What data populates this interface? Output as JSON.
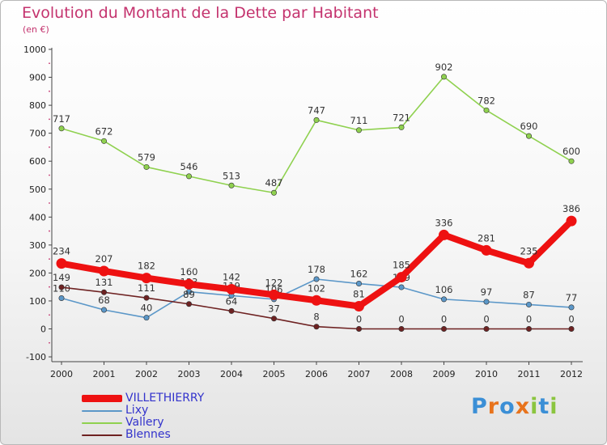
{
  "title": "Evolution du Montant de la Dette par Habitant",
  "unit": "(en €)",
  "logo": "Proxiti",
  "chart_data": {
    "type": "line",
    "x": [
      "2000",
      "2001",
      "2002",
      "2003",
      "2004",
      "2005",
      "2006",
      "2007",
      "2008",
      "2009",
      "2010",
      "2011",
      "2012"
    ],
    "ylim": [
      -100,
      1000
    ],
    "yticks": [
      -100,
      0,
      100,
      200,
      300,
      400,
      500,
      600,
      700,
      800,
      900,
      1000
    ],
    "grid": false,
    "legend_position": "bottom-left",
    "series": [
      {
        "name": "Vallery",
        "color": "#8fd14f",
        "values": [
          717,
          672,
          579,
          546,
          513,
          487,
          747,
          711,
          721,
          902,
          782,
          690,
          600
        ]
      },
      {
        "name": "Lixy",
        "color": "#5b97c8",
        "values": [
          110,
          68,
          40,
          133,
          119,
          106,
          178,
          162,
          149,
          106,
          97,
          87,
          77
        ]
      },
      {
        "name": "Blennes",
        "color": "#6e2222",
        "values": [
          149,
          131,
          111,
          89,
          64,
          37,
          8,
          0,
          0,
          0,
          0,
          0,
          0
        ]
      },
      {
        "name": "VILLETHIERRY",
        "color": "#ee1111",
        "values": [
          234,
          207,
          182,
          160,
          142,
          122,
          102,
          81,
          185,
          336,
          281,
          235,
          386
        ]
      }
    ],
    "legend": [
      "VILLETHIERRY",
      "Lixy",
      "Vallery",
      "Blennes"
    ]
  },
  "colors": {
    "title": "#c4336e",
    "axis": "#444444",
    "legend_text": "#3333cc"
  }
}
